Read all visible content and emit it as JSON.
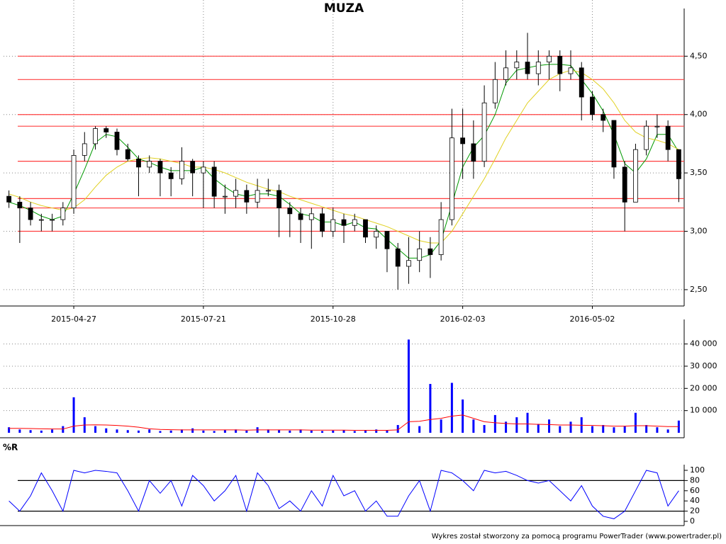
{
  "chart_data": [
    {
      "type": "candlestick",
      "title": "MUZA",
      "categories": [
        null,
        null,
        null,
        null,
        null,
        null,
        "2015-04-27",
        null,
        null,
        null,
        null,
        null,
        null,
        null,
        null,
        null,
        null,
        null,
        "2015-07-21",
        null,
        null,
        null,
        null,
        null,
        null,
        null,
        null,
        null,
        null,
        null,
        "2015-10-28",
        null,
        null,
        null,
        null,
        null,
        null,
        null,
        null,
        null,
        null,
        null,
        "2016-02-03",
        null,
        null,
        null,
        null,
        null,
        null,
        null,
        null,
        null,
        null,
        null,
        "2016-05-02",
        null,
        null,
        null,
        null,
        null,
        null,
        null,
        null
      ],
      "open": [
        3.3,
        3.25,
        3.2,
        3.1,
        3.1,
        3.1,
        3.2,
        3.65,
        3.75,
        3.88,
        3.85,
        3.7,
        3.62,
        3.55,
        3.6,
        3.5,
        3.45,
        3.6,
        3.5,
        3.55,
        3.3,
        3.3,
        3.35,
        3.25,
        3.35,
        3.35,
        3.2,
        3.15,
        3.1,
        3.15,
        3.0,
        3.1,
        3.05,
        3.1,
        2.95,
        3.0,
        2.85,
        2.7,
        2.75,
        2.85,
        2.8,
        3.1,
        3.8,
        3.75,
        3.6,
        4.1,
        4.3,
        4.4,
        4.45,
        4.35,
        4.45,
        4.5,
        4.35,
        4.4,
        4.15,
        4.0,
        3.95,
        3.55,
        3.25,
        3.7,
        3.9,
        3.9,
        3.7
      ],
      "high": [
        3.35,
        3.3,
        3.25,
        3.15,
        3.15,
        3.25,
        3.7,
        3.85,
        3.9,
        3.9,
        3.88,
        3.75,
        3.65,
        3.65,
        3.62,
        3.55,
        3.72,
        3.62,
        3.6,
        3.6,
        3.4,
        3.45,
        3.4,
        3.45,
        3.45,
        3.4,
        3.25,
        3.2,
        3.2,
        3.2,
        3.2,
        3.15,
        3.15,
        3.1,
        3.05,
        3.0,
        2.9,
        2.95,
        3.0,
        2.95,
        3.25,
        4.05,
        4.05,
        3.95,
        4.25,
        4.45,
        4.55,
        4.55,
        4.7,
        4.55,
        4.55,
        4.55,
        4.55,
        4.45,
        4.2,
        4.05,
        3.95,
        3.6,
        3.75,
        3.95,
        4.0,
        3.95,
        3.7
      ],
      "low": [
        3.2,
        2.9,
        3.05,
        3.0,
        3.0,
        3.05,
        3.15,
        3.6,
        3.7,
        3.8,
        3.65,
        3.6,
        3.3,
        3.5,
        3.3,
        3.3,
        3.4,
        3.3,
        3.2,
        3.2,
        3.15,
        3.2,
        3.15,
        3.2,
        3.3,
        2.95,
        2.95,
        2.9,
        2.85,
        2.95,
        2.95,
        2.9,
        3.0,
        2.9,
        2.85,
        2.65,
        2.5,
        2.55,
        2.65,
        2.6,
        2.75,
        3.05,
        3.45,
        3.45,
        3.55,
        4.05,
        4.25,
        4.3,
        4.3,
        4.25,
        4.3,
        4.2,
        4.3,
        3.95,
        3.95,
        3.85,
        3.45,
        3.0,
        3.25,
        3.65,
        3.8,
        3.6,
        3.25
      ],
      "close": [
        3.25,
        3.2,
        3.1,
        3.1,
        3.1,
        3.2,
        3.65,
        3.75,
        3.88,
        3.85,
        3.7,
        3.62,
        3.55,
        3.6,
        3.5,
        3.45,
        3.6,
        3.5,
        3.55,
        3.3,
        3.3,
        3.35,
        3.25,
        3.35,
        3.35,
        3.2,
        3.15,
        3.1,
        3.15,
        3.0,
        3.1,
        3.05,
        3.1,
        2.95,
        3.0,
        2.85,
        2.7,
        2.75,
        2.85,
        2.8,
        3.1,
        3.8,
        3.75,
        3.6,
        4.1,
        4.3,
        4.4,
        4.45,
        4.35,
        4.45,
        4.5,
        4.35,
        4.4,
        4.15,
        4.0,
        3.95,
        3.55,
        3.25,
        3.7,
        3.9,
        3.9,
        3.7,
        3.45
      ],
      "lines": [
        {
          "color": "#009900",
          "values": [
            3.25,
            3.22,
            3.18,
            3.13,
            3.1,
            3.13,
            3.32,
            3.53,
            3.76,
            3.83,
            3.81,
            3.72,
            3.62,
            3.59,
            3.55,
            3.52,
            3.52,
            3.52,
            3.55,
            3.45,
            3.38,
            3.32,
            3.3,
            3.32,
            3.32,
            3.3,
            3.23,
            3.15,
            3.13,
            3.08,
            3.08,
            3.05,
            3.08,
            3.03,
            3.02,
            2.93,
            2.85,
            2.77,
            2.77,
            2.8,
            2.92,
            3.23,
            3.55,
            3.72,
            3.82,
            4.0,
            4.27,
            4.38,
            4.4,
            4.42,
            4.43,
            4.43,
            4.42,
            4.3,
            4.18,
            4.03,
            3.83,
            3.58,
            3.5,
            3.62,
            3.83,
            3.83,
            3.68
          ]
        },
        {
          "color": "#e0d020",
          "values": [
            3.32,
            3.29,
            3.25,
            3.22,
            3.2,
            3.18,
            3.2,
            3.27,
            3.38,
            3.48,
            3.55,
            3.6,
            3.62,
            3.63,
            3.62,
            3.6,
            3.58,
            3.55,
            3.55,
            3.53,
            3.5,
            3.46,
            3.42,
            3.39,
            3.36,
            3.34,
            3.3,
            3.27,
            3.24,
            3.21,
            3.18,
            3.15,
            3.13,
            3.1,
            3.07,
            3.04,
            3.0,
            2.96,
            2.92,
            2.9,
            2.9,
            3.0,
            3.15,
            3.3,
            3.45,
            3.62,
            3.8,
            3.95,
            4.1,
            4.2,
            4.3,
            4.35,
            4.38,
            4.36,
            4.3,
            4.22,
            4.1,
            3.95,
            3.85,
            3.8,
            3.78,
            3.75,
            3.7
          ]
        }
      ],
      "levels": [
        4.5,
        4.3,
        4.0,
        3.9,
        3.6,
        3.28,
        3.2,
        3.0
      ],
      "level_color": "#ff4040",
      "ylim": [
        2.36,
        4.86
      ],
      "yticks": [
        {
          "value": 2.5,
          "label": "2,50"
        },
        {
          "value": 3.0,
          "label": "3,00"
        },
        {
          "value": 3.5,
          "label": "3,50"
        },
        {
          "value": 4.0,
          "label": "4,00"
        },
        {
          "value": 4.5,
          "label": "4,50"
        }
      ],
      "grid": true
    },
    {
      "type": "bar",
      "color": "#0000ff",
      "values": [
        2500,
        1500,
        1200,
        1000,
        1500,
        3000,
        16000,
        7000,
        3000,
        2000,
        1500,
        1200,
        1000,
        1500,
        800,
        1000,
        1500,
        2000,
        1000,
        800,
        1200,
        1500,
        1000,
        2500,
        1500,
        1200,
        1000,
        1500,
        1000,
        800,
        1000,
        1200,
        800,
        1000,
        1500,
        1200,
        3500,
        42000,
        3000,
        22000,
        6000,
        22500,
        15000,
        6000,
        3500,
        8000,
        5000,
        7000,
        9000,
        4000,
        6000,
        3000,
        5000,
        7000,
        3000,
        3500,
        2500,
        3000,
        9000,
        3500,
        2500,
        1500,
        5500
      ],
      "lines": [
        {
          "color": "#ff0000",
          "values": [
            2000,
            2000,
            1900,
            1800,
            1700,
            1700,
            3000,
            3500,
            3600,
            3500,
            3300,
            3000,
            2500,
            1800,
            1500,
            1400,
            1300,
            1300,
            1300,
            1300,
            1300,
            1300,
            1200,
            1300,
            1300,
            1300,
            1300,
            1300,
            1200,
            1200,
            1200,
            1200,
            1100,
            1100,
            1100,
            1100,
            1300,
            5000,
            5200,
            6000,
            6500,
            7500,
            8000,
            6500,
            5000,
            4500,
            4200,
            4000,
            4000,
            3800,
            3700,
            3500,
            3500,
            3400,
            3300,
            3200,
            3000,
            3000,
            3200,
            3200,
            3000,
            2800,
            2800
          ]
        }
      ],
      "ylim": [
        0,
        48500
      ],
      "yticks": [
        {
          "value": 10000,
          "label": "10 000"
        },
        {
          "value": 20000,
          "label": "20 000"
        },
        {
          "value": 30000,
          "label": "30 000"
        },
        {
          "value": 40000,
          "label": "40 000"
        }
      ],
      "grid": true
    },
    {
      "type": "line",
      "title": "%R",
      "color": "#0000ff",
      "values": [
        40,
        20,
        50,
        95,
        60,
        20,
        100,
        95,
        100,
        98,
        95,
        60,
        20,
        80,
        55,
        80,
        30,
        90,
        70,
        40,
        60,
        90,
        20,
        95,
        70,
        25,
        40,
        20,
        60,
        30,
        90,
        50,
        60,
        20,
        40,
        10,
        10,
        50,
        80,
        20,
        100,
        95,
        80,
        60,
        100,
        95,
        98,
        90,
        80,
        75,
        80,
        60,
        40,
        70,
        30,
        10,
        5,
        20,
        60,
        100,
        95,
        30,
        60
      ],
      "levels": [
        20,
        80
      ],
      "level_color": "#000000",
      "ylim": [
        0,
        100
      ],
      "yticks": [
        0,
        20,
        40,
        60,
        80,
        100
      ],
      "grid": false
    }
  ],
  "footer": "Wykres został stworzony za pomocą programu PowerTrader (www.powertrader.pl)"
}
